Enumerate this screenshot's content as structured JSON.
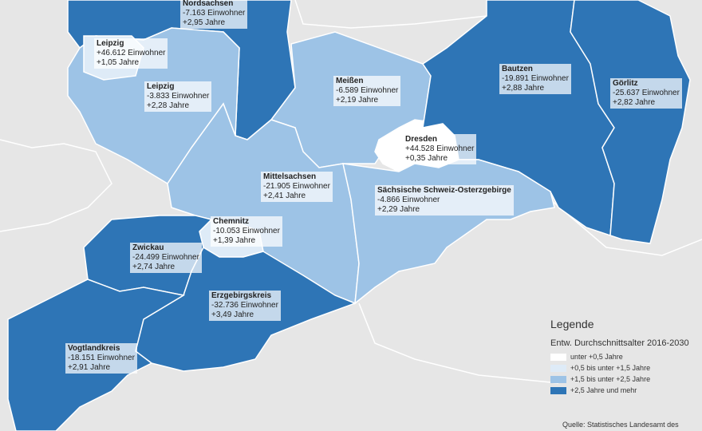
{
  "regions": [
    {
      "name": "Nordsachsen",
      "population": "-7.163 Einwohner",
      "age": "+2,95 Jahre",
      "color": "#2e75b6"
    },
    {
      "name": "Leipzig",
      "population": "-3.833 Einwohner",
      "age": "+2,28 Jahre",
      "color": "#9dc3e6"
    },
    {
      "name": "Leipzig",
      "population": "+46.612 Einwohner",
      "age": "+1,05 Jahre",
      "color": "#deebf7"
    },
    {
      "name": "Meißen",
      "population": "-6.589 Einwohner",
      "age": "+2,19 Jahre",
      "color": "#9dc3e6"
    },
    {
      "name": "Mittelsachsen",
      "population": "-21.905 Einwohner",
      "age": "+2,41 Jahre",
      "color": "#9dc3e6"
    },
    {
      "name": "Dresden",
      "population": "+44.528 Einwohner",
      "age": "+0,35 Jahre",
      "color": "#ffffff"
    },
    {
      "name": "Bautzen",
      "population": "-19.891 Einwohner",
      "age": "+2,88 Jahre",
      "color": "#2e75b6"
    },
    {
      "name": "Görlitz",
      "population": "-25.637 Einwohner",
      "age": "+2,82 Jahre",
      "color": "#2e75b6"
    },
    {
      "name": "Sächsische Schweiz-Osterzgebirge",
      "population": "-4.866 Einwohner",
      "age": "+2,29 Jahre",
      "color": "#9dc3e6"
    },
    {
      "name": "Chemnitz",
      "population": "-10.053 Einwohner",
      "age": "+1,39 Jahre",
      "color": "#deebf7"
    },
    {
      "name": "Zwickau",
      "population": "-24.499 Einwohner",
      "age": "+2,74 Jahre",
      "color": "#2e75b6"
    },
    {
      "name": "Erzgebirgskreis",
      "population": "-32.736 Einwohner",
      "age": "+3,49 Jahre",
      "color": "#2e75b6"
    },
    {
      "name": "Vogtlandkreis",
      "population": "-18.151 Einwohner",
      "age": "+2,91 Jahre",
      "color": "#2e75b6"
    }
  ],
  "legend": {
    "title": "Legende",
    "subtitle": "Entw. Durchschnittsalter 2016-2030",
    "items": [
      {
        "label": "unter +0,5 Jahre",
        "color": "#ffffff"
      },
      {
        "label": "+0,5 bis unter +1,5 Jahre",
        "color": "#deebf7"
      },
      {
        "label": "+1,5 bis unter +2,5 Jahre",
        "color": "#9dc3e6"
      },
      {
        "label": "+2,5 Jahre und mehr",
        "color": "#2e75b6"
      }
    ]
  },
  "source": "Quelle: Statistisches Landesamt des"
}
